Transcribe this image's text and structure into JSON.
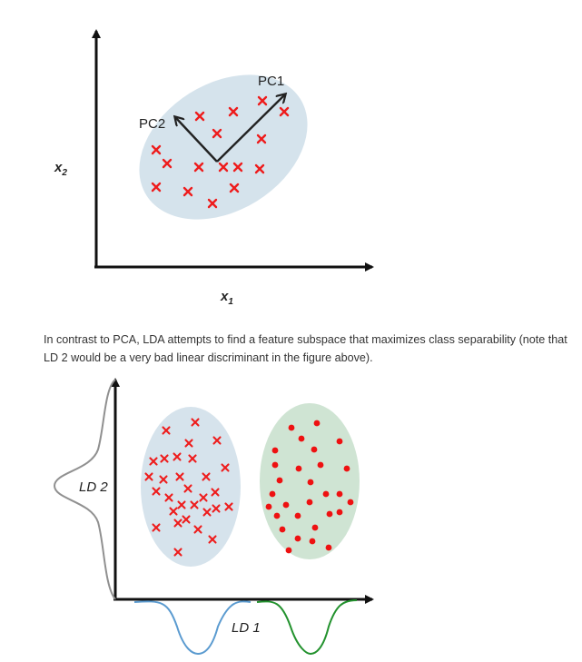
{
  "pca_figure": {
    "labels": {
      "pc1": "PC1",
      "pc2": "PC2",
      "x1": "x",
      "x1_sub": "1",
      "x2": "x",
      "x2_sub": "2"
    },
    "colors": {
      "ellipse": "#d5e3ec",
      "cross": "#ee1c1c",
      "axis": "#111111"
    }
  },
  "caption": {
    "text": "In contrast to PCA, LDA attempts to find a feature subspace that maximizes class separability (note that LD 2 would be a very bad linear discriminant in the figure above)."
  },
  "lda_figure": {
    "labels": {
      "ld1": "LD 1",
      "ld2": "LD 2"
    },
    "colors": {
      "left_ellipse": "#d6e3ec",
      "right_ellipse": "#cfe4d3",
      "cross": "#ee1c1c",
      "dot": "#ee1111",
      "curve_left": "#5b9bd0",
      "curve_right": "#23922e",
      "curve_y": "#909090"
    }
  }
}
